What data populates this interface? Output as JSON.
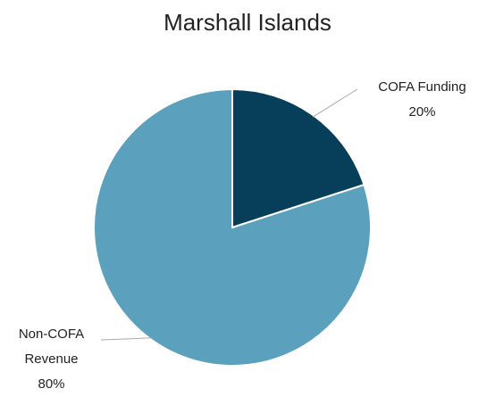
{
  "chart_data": {
    "type": "pie",
    "title": "Marshall Islands",
    "categories": [
      "COFA Funding",
      "Non-COFA Revenue"
    ],
    "values": [
      20,
      80
    ],
    "value_labels": [
      "20%",
      "80%"
    ],
    "colors": [
      "#073f5b",
      "#5ba0bd"
    ]
  }
}
